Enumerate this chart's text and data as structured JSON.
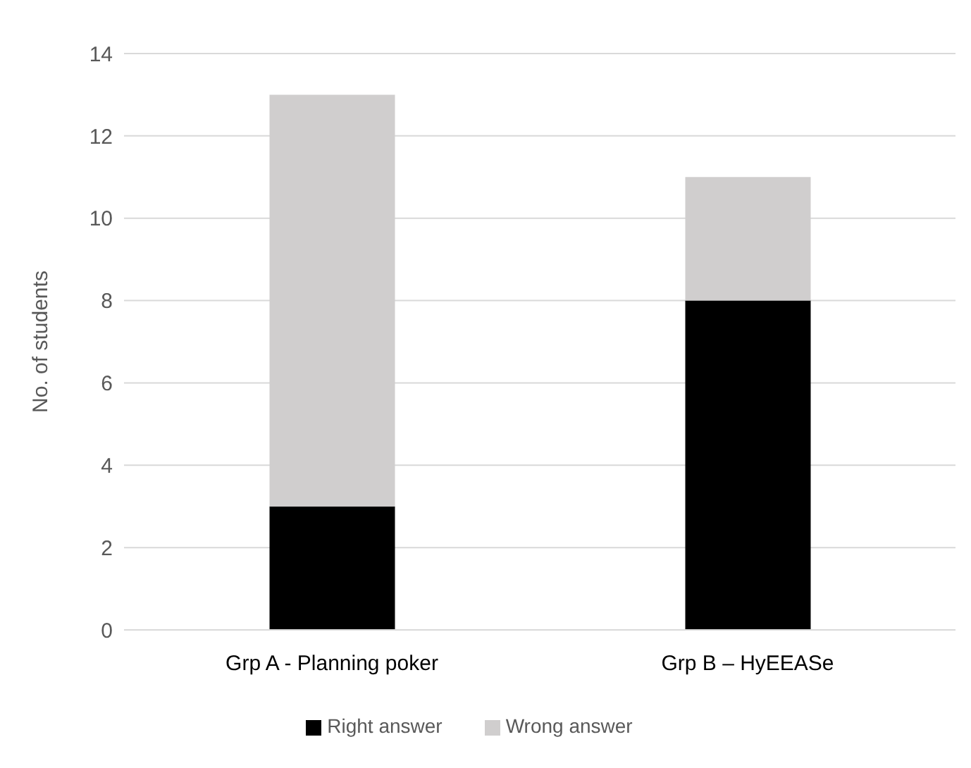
{
  "chart_data": {
    "type": "bar",
    "stacked": true,
    "ylabel": "No. of students",
    "categories": [
      "Grp A - Planning poker",
      "Grp B – HyEEASe"
    ],
    "series": [
      {
        "name": "Right answer",
        "color": "#000000",
        "values": [
          3,
          8
        ]
      },
      {
        "name": "Wrong answer",
        "color": "#d0cece",
        "values": [
          10,
          3
        ]
      }
    ],
    "ylim": [
      0,
      14
    ],
    "yticks": [
      0,
      2,
      4,
      6,
      8,
      10,
      12,
      14
    ],
    "grid": "y",
    "legend": "bottom"
  }
}
